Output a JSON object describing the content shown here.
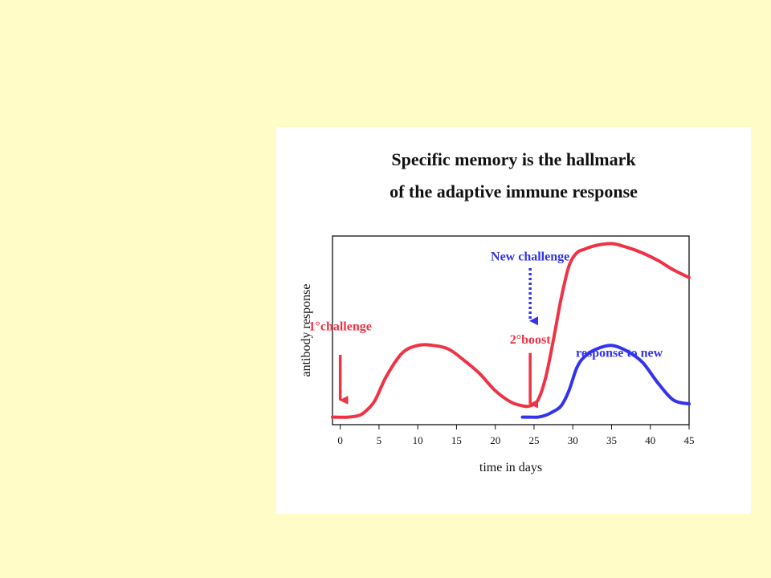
{
  "colors": {
    "background": "#fffcc8",
    "primary": "#ee3344",
    "new": "#3333ee"
  },
  "chart_data": {
    "type": "line",
    "title": "Specific memory is the hallmark",
    "subtitle": "of the adaptive immune response",
    "xlabel": "time in days",
    "ylabel": "antibody response",
    "xlim": [
      -1,
      45
    ],
    "ylim": [
      0,
      1
    ],
    "xticks": [
      0,
      5,
      10,
      15,
      20,
      25,
      30,
      35,
      40,
      45
    ],
    "series": [
      {
        "name": "primary_and_boost",
        "color": "#ee3344",
        "x": [
          -1,
          1,
          2.5,
          3.5,
          4.5,
          6,
          8,
          10,
          12,
          14,
          16,
          18,
          20,
          22,
          23.5,
          24.5,
          25.5,
          26.5,
          27.5,
          28.5,
          29.5,
          30.5,
          31.5,
          33,
          35,
          37,
          39,
          41,
          43,
          45
        ],
        "y": [
          0.04,
          0.04,
          0.05,
          0.08,
          0.13,
          0.26,
          0.38,
          0.42,
          0.42,
          0.4,
          0.34,
          0.27,
          0.18,
          0.12,
          0.1,
          0.1,
          0.13,
          0.25,
          0.45,
          0.67,
          0.84,
          0.91,
          0.93,
          0.95,
          0.96,
          0.94,
          0.91,
          0.87,
          0.82,
          0.78
        ]
      },
      {
        "name": "response_to_new",
        "color": "#3333ee",
        "x": [
          23.5,
          24.5,
          25.5,
          26.5,
          27.5,
          28.5,
          29.5,
          30.5,
          31.5,
          33,
          35,
          37,
          39,
          41,
          43,
          45
        ],
        "y": [
          0.04,
          0.04,
          0.04,
          0.05,
          0.07,
          0.1,
          0.18,
          0.3,
          0.36,
          0.4,
          0.42,
          0.39,
          0.33,
          0.22,
          0.13,
          0.11
        ]
      }
    ],
    "annotations": [
      {
        "text": "1°challenge",
        "x": 0,
        "y": 0.5,
        "color": "#ee3344",
        "arrow": "solid",
        "arrow_from_y": 0.37,
        "arrow_to_y": 0.13
      },
      {
        "text": "2°boost",
        "x": 24.5,
        "y": 0.43,
        "color": "#ee3344",
        "arrow": "solid",
        "arrow_from_y": 0.38,
        "arrow_to_y": 0.11
      },
      {
        "text": "New challenge",
        "x": 24.5,
        "y": 0.87,
        "color": "#3333ee",
        "arrow": "dotted",
        "arrow_from_y": 0.83,
        "arrow_to_y": 0.55
      },
      {
        "text": "response to new",
        "x": 36,
        "y": 0.36,
        "color": "#3333ee"
      }
    ]
  }
}
